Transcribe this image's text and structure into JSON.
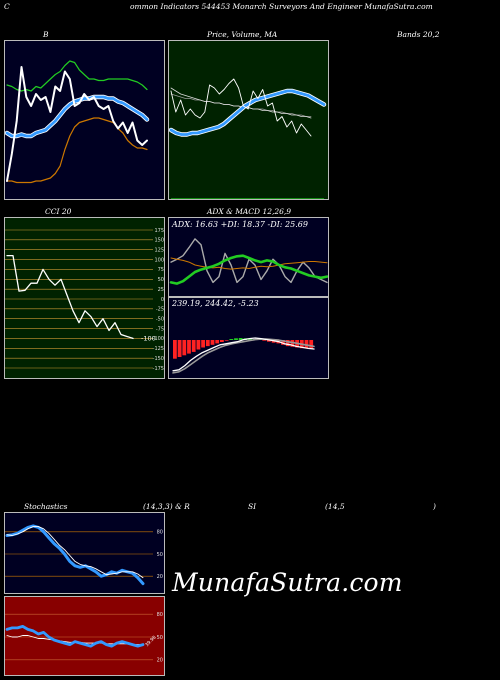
{
  "header": {
    "title": "Common  Indicators 544453 Monarch Surveyors And Engineer MunafaSutra.com",
    "title_first": "C",
    "title_rest": "ommon  Indicators 544453 Monarch Surveyors And Engineer MunafaSutra.com"
  },
  "labels": {
    "bb_left": "B",
    "price_mid": "Price,  Volume,  MA",
    "bb_right": "Bands 20,2",
    "cci": "CCI 20",
    "adx_macd": "ADX  & MACD 12,26,9",
    "stoch_left": "Stochastics",
    "stoch_params": "(14,3,3) & R",
    "rsi_mid": "SI",
    "rsi_params": "(14,5",
    "rsi_close": ")"
  },
  "watermark": "MunafaSutra.com",
  "colors": {
    "bb_bg": "#000022",
    "price_bg": "#002200",
    "cci_bg": "#002200",
    "adx_bg": "#000022",
    "stoch_bg": "#000022",
    "rsi_bg": "#880000",
    "band_green": "#22cc22",
    "band_orange": "#cc7700",
    "ma_blue": "#3399ff",
    "white": "#ffffff",
    "macd_red": "#ff2222",
    "macd_green": "#22cc22"
  },
  "chart_data": [
    {
      "type": "line",
      "panel": "bollinger",
      "series": [
        {
          "name": "price",
          "values": [
            0.12,
            0.3,
            0.52,
            0.88,
            0.68,
            0.62,
            0.7,
            0.66,
            0.68,
            0.58,
            0.75,
            0.72,
            0.85,
            0.8,
            0.62,
            0.64,
            0.7,
            0.66,
            0.68,
            0.62,
            0.6,
            0.62,
            0.52,
            0.47,
            0.51,
            0.44,
            0.51,
            0.39,
            0.36,
            0.39
          ]
        },
        {
          "name": "upper",
          "values": [
            0.76,
            0.75,
            0.73,
            0.72,
            0.73,
            0.72,
            0.75,
            0.74,
            0.77,
            0.8,
            0.83,
            0.85,
            0.89,
            0.92,
            0.91,
            0.86,
            0.83,
            0.8,
            0.8,
            0.79,
            0.79,
            0.8,
            0.8,
            0.8,
            0.8,
            0.8,
            0.79,
            0.78,
            0.76,
            0.73
          ]
        },
        {
          "name": "middle",
          "values": [
            0.44,
            0.42,
            0.42,
            0.43,
            0.42,
            0.42,
            0.44,
            0.45,
            0.46,
            0.49,
            0.52,
            0.56,
            0.6,
            0.63,
            0.65,
            0.66,
            0.67,
            0.67,
            0.68,
            0.68,
            0.68,
            0.67,
            0.67,
            0.65,
            0.64,
            0.62,
            0.6,
            0.58,
            0.56,
            0.53
          ]
        },
        {
          "name": "lower",
          "values": [
            0.12,
            0.12,
            0.11,
            0.11,
            0.11,
            0.11,
            0.12,
            0.12,
            0.13,
            0.14,
            0.17,
            0.22,
            0.33,
            0.42,
            0.48,
            0.51,
            0.52,
            0.53,
            0.54,
            0.54,
            0.53,
            0.52,
            0.51,
            0.47,
            0.44,
            0.39,
            0.36,
            0.34,
            0.34,
            0.33
          ]
        }
      ]
    },
    {
      "type": "line",
      "panel": "price_ma",
      "series": [
        {
          "name": "price",
          "values": [
            0.72,
            0.58,
            0.66,
            0.56,
            0.6,
            0.56,
            0.54,
            0.58,
            0.76,
            0.74,
            0.7,
            0.73,
            0.77,
            0.8,
            0.74,
            0.62,
            0.6,
            0.72,
            0.67,
            0.73,
            0.62,
            0.64,
            0.52,
            0.55,
            0.48,
            0.52,
            0.44,
            0.5,
            0.46,
            0.42
          ]
        },
        {
          "name": "ma_white",
          "values": [
            0.74,
            0.72,
            0.7,
            0.69,
            0.68,
            0.67,
            0.66,
            0.65,
            0.65,
            0.64,
            0.64,
            0.63,
            0.63,
            0.62,
            0.62,
            0.61,
            0.61,
            0.6,
            0.6,
            0.59,
            0.59,
            0.58,
            0.58,
            0.57,
            0.57,
            0.56,
            0.56,
            0.55,
            0.55,
            0.54
          ]
        },
        {
          "name": "ma_grey",
          "values": [
            0.7,
            0.69,
            0.68,
            0.67,
            0.67,
            0.66,
            0.66,
            0.65,
            0.65,
            0.64,
            0.64,
            0.63,
            0.63,
            0.62,
            0.62,
            0.61,
            0.61,
            0.6,
            0.6,
            0.6,
            0.59,
            0.59,
            0.58,
            0.58,
            0.57,
            0.57,
            0.56,
            0.56,
            0.55,
            0.55
          ]
        },
        {
          "name": "ma_blue",
          "values": [
            0.46,
            0.44,
            0.43,
            0.43,
            0.44,
            0.44,
            0.45,
            0.46,
            0.47,
            0.48,
            0.5,
            0.53,
            0.56,
            0.59,
            0.62,
            0.64,
            0.66,
            0.67,
            0.68,
            0.69,
            0.7,
            0.71,
            0.72,
            0.72,
            0.71,
            0.7,
            0.69,
            0.67,
            0.65,
            0.63
          ]
        }
      ]
    },
    {
      "type": "line",
      "panel": "cci",
      "ylim": [
        -175,
        175
      ],
      "ticks": [
        175,
        150,
        125,
        100,
        75,
        50,
        25,
        0,
        -25,
        -50,
        -75,
        -100,
        -125,
        -150,
        -175
      ],
      "tick_labels": [
        "175",
        "150",
        "125",
        "100",
        "75",
        "50",
        "25",
        "0",
        "-25",
        "-50",
        "-75",
        "-100",
        "-125",
        "-150",
        "-175"
      ],
      "last_value_label": "-100",
      "series": [
        {
          "name": "cci",
          "values": [
            110,
            110,
            20,
            22,
            40,
            40,
            75,
            50,
            35,
            50,
            10,
            -30,
            -60,
            -30,
            -45,
            -70,
            -50,
            -80,
            -60,
            -90,
            -95,
            -100
          ]
        }
      ]
    },
    {
      "type": "line",
      "panel": "adx",
      "text": "ADX: 16.63  +DI: 18.37  -DI: 25.69",
      "series": [
        {
          "name": "adx",
          "values": [
            0.55,
            0.6,
            0.66,
            0.8,
            0.95,
            0.85,
            0.4,
            0.2,
            0.3,
            0.7,
            0.5,
            0.2,
            0.3,
            0.6,
            0.5,
            0.25,
            0.4,
            0.6,
            0.5,
            0.3,
            0.2,
            0.4,
            0.55,
            0.45,
            0.3,
            0.25,
            0.2
          ]
        },
        {
          "name": "plus_di",
          "values": [
            0.2,
            0.18,
            0.22,
            0.3,
            0.38,
            0.42,
            0.45,
            0.48,
            0.52,
            0.58,
            0.62,
            0.65,
            0.66,
            0.62,
            0.58,
            0.55,
            0.58,
            0.56,
            0.5,
            0.46,
            0.44,
            0.4,
            0.36,
            0.32,
            0.3,
            0.28,
            0.3
          ]
        },
        {
          "name": "minus_di",
          "values": [
            0.62,
            0.6,
            0.58,
            0.55,
            0.5,
            0.48,
            0.46,
            0.45,
            0.46,
            0.44,
            0.43,
            0.44,
            0.45,
            0.44,
            0.46,
            0.48,
            0.47,
            0.48,
            0.5,
            0.52,
            0.53,
            0.54,
            0.55,
            0.56,
            0.56,
            0.55,
            0.54
          ]
        }
      ]
    },
    {
      "type": "bar",
      "panel": "macd",
      "text": "239.19,  244.42,  -5.23",
      "series": [
        {
          "name": "macd",
          "values": [
            0.1,
            0.12,
            0.2,
            0.3,
            0.38,
            0.45,
            0.5,
            0.55,
            0.6,
            0.62,
            0.64,
            0.66,
            0.7,
            0.72,
            0.73,
            0.72,
            0.7,
            0.68,
            0.66,
            0.62,
            0.6,
            0.57,
            0.55,
            0.53,
            0.52
          ]
        },
        {
          "name": "signal",
          "values": [
            0.06,
            0.08,
            0.14,
            0.22,
            0.3,
            0.38,
            0.45,
            0.5,
            0.55,
            0.59,
            0.62,
            0.64,
            0.66,
            0.68,
            0.7,
            0.71,
            0.71,
            0.7,
            0.69,
            0.67,
            0.65,
            0.63,
            0.61,
            0.59,
            0.57
          ]
        },
        {
          "name": "histogram",
          "values": [
            -0.55,
            -0.5,
            -0.45,
            -0.4,
            -0.35,
            -0.28,
            -0.22,
            -0.18,
            -0.14,
            -0.1,
            -0.06,
            -0.02,
            0.03,
            0.05,
            0.06,
            0.05,
            0.04,
            0.03,
            0.02,
            -0.02,
            -0.05,
            -0.08,
            -0.1,
            -0.14,
            -0.18,
            -0.2,
            -0.22,
            -0.24,
            -0.25,
            -0.26
          ]
        }
      ]
    },
    {
      "type": "line",
      "panel": "stochastics",
      "ylim": [
        0,
        100
      ],
      "ticks": [
        80,
        50,
        20
      ],
      "tick_labels": [
        "80",
        "50",
        "20"
      ],
      "series": [
        {
          "name": "k",
          "values": [
            75,
            76,
            78,
            82,
            86,
            88,
            86,
            80,
            72,
            64,
            58,
            50,
            40,
            34,
            32,
            34,
            30,
            26,
            20,
            22,
            26,
            24,
            28,
            26,
            24,
            18,
            10
          ]
        },
        {
          "name": "d",
          "values": [
            76,
            75,
            77,
            80,
            84,
            87,
            87,
            84,
            78,
            70,
            62,
            56,
            48,
            40,
            36,
            34,
            33,
            30,
            26,
            22,
            23,
            24,
            26,
            26,
            26,
            23,
            18
          ]
        }
      ]
    },
    {
      "type": "line",
      "panel": "rsi",
      "ylim": [
        0,
        100
      ],
      "ticks": [
        80,
        50,
        20
      ],
      "tick_labels": [
        "80",
        "50",
        "20"
      ],
      "last_value_label": "39.98",
      "series": [
        {
          "name": "rsi",
          "values": [
            60,
            62,
            62,
            64,
            60,
            58,
            54,
            56,
            50,
            46,
            44,
            42,
            40,
            44,
            42,
            40,
            38,
            42,
            44,
            40,
            38,
            42,
            44,
            42,
            40,
            38,
            40
          ]
        },
        {
          "name": "avg",
          "values": [
            52,
            50,
            50,
            52,
            52,
            50,
            48,
            48,
            47,
            46,
            45,
            44,
            43,
            43,
            43,
            42,
            42,
            42,
            42,
            41,
            41,
            41,
            41,
            41,
            40,
            40,
            40
          ]
        }
      ]
    }
  ]
}
